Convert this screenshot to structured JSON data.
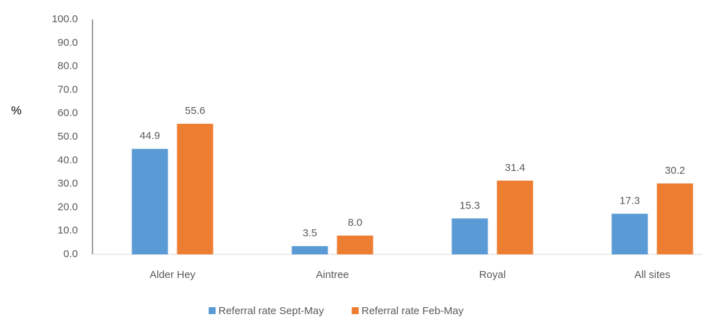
{
  "chart_data": {
    "type": "bar",
    "y_label": "%",
    "categories": [
      "Alder Hey",
      "Aintree",
      "Royal",
      "All sites"
    ],
    "series": [
      {
        "name": "Referral rate Sept-May",
        "color": "#5b9bd5",
        "values": [
          44.9,
          3.5,
          15.3,
          17.3
        ],
        "value_labels": [
          "44.9",
          "3.5",
          "15.3",
          "17.3"
        ]
      },
      {
        "name": "Referral rate Feb-May",
        "color": "#ed7d31",
        "values": [
          55.6,
          8,
          31.4,
          30.2
        ],
        "value_labels": [
          "55.6",
          "8.0",
          "31.4",
          "30.2"
        ]
      }
    ],
    "ylim": [
      0,
      100
    ],
    "yticks": [
      {
        "value": 0,
        "label": "0.0"
      },
      {
        "value": 10,
        "label": "10.0"
      },
      {
        "value": 20,
        "label": "20.0"
      },
      {
        "value": 30,
        "label": "30.0"
      },
      {
        "value": 40,
        "label": "40.0"
      },
      {
        "value": 50,
        "label": "50.0"
      },
      {
        "value": 60,
        "label": "60.0"
      },
      {
        "value": 70,
        "label": "70.0"
      },
      {
        "value": 80,
        "label": "80.0"
      },
      {
        "value": 90,
        "label": "90.0"
      },
      {
        "value": 100,
        "label": "100.0"
      }
    ],
    "grid": false,
    "legend": "bottom"
  }
}
